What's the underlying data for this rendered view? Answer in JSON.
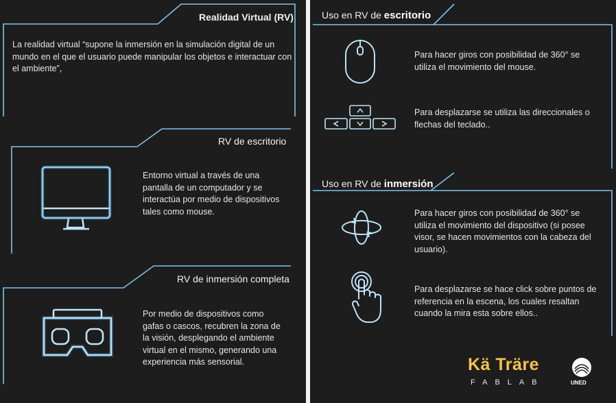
{
  "colors": {
    "panel_bg": "#1d1d1d",
    "line_blue": "#7fc4ec",
    "text": "#e6e6e6",
    "logo_yellow": "#f5c24a"
  },
  "left": {
    "section1": {
      "title": "Realidad Virtual (RV)",
      "text": "La realidad virtual  “supone la inmersión en la simulación digital de un mundo en el que el usuario puede manipular los objetos e interactuar con el ambiente”,"
    },
    "section2": {
      "title": "RV de escritorio",
      "icon": "monitor-icon",
      "text": "Entorno virtual a través de una pantalla de un computador y se interactúa por medio de dispositivos tales como mouse."
    },
    "section3": {
      "title": "RV de inmersión completa",
      "icon": "vr-headset-icon",
      "text": "Por medio de dispositivos como gafas o cascos, recubren la zona de la visión, desplegando el ambiente virtual en el mismo, generando una experiencia más sensorial."
    }
  },
  "right": {
    "desktop": {
      "title_prefix": "Uso en RV de ",
      "title_strong": "escritorio",
      "items": [
        {
          "icon": "mouse-icon",
          "text": "Para hacer giros con posibilidad de 360° se utiliza el movimiento del mouse."
        },
        {
          "icon": "arrow-keys-icon",
          "text": "Para desplazarse se utiliza las direccionales o flechas del teclado.."
        }
      ]
    },
    "immersion": {
      "title_prefix": "Uso en RV de ",
      "title_strong": "inmersión",
      "items": [
        {
          "icon": "rotate-360-icon",
          "text": "Para hacer giros con posibilidad de 360° se utiliza el movimiento del dispositivo (si posee visor, se hacen movimientos con la cabeza del usuario)."
        },
        {
          "icon": "tap-hand-icon",
          "text": "Para desplazarse se hace click sobre puntos de referencia en la escena, los cuales  resaltan cuando la mira esta sobre ellos.."
        }
      ]
    },
    "logos": {
      "brand": "Kä Träre",
      "brand_sub": "FABLAB",
      "uned": "UNED"
    }
  }
}
